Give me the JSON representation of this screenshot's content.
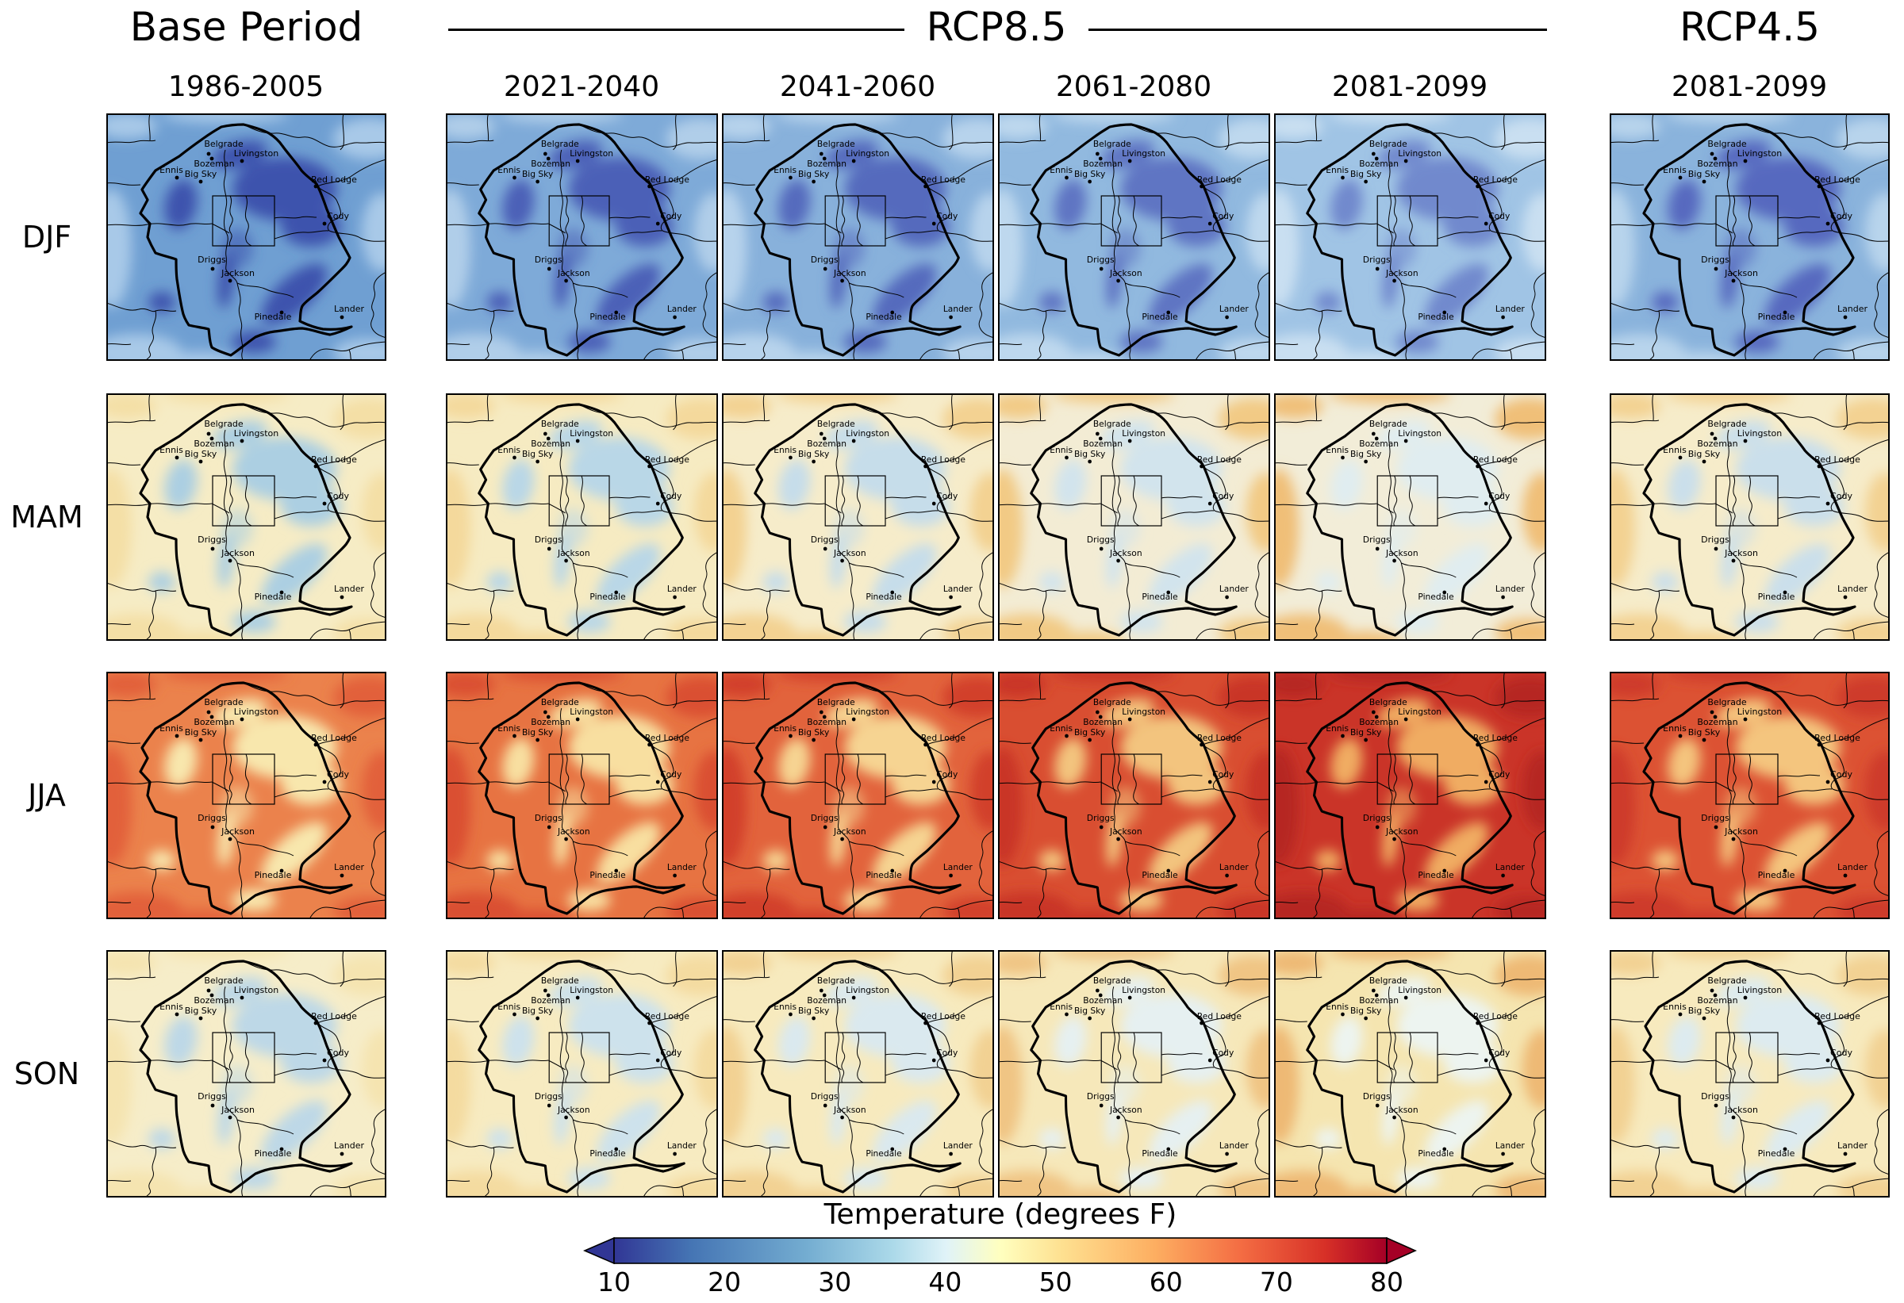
{
  "header": {
    "base_period": {
      "label": "Base Period"
    },
    "rcp85": {
      "label": "RCP8.5"
    },
    "rcp45": {
      "label": "RCP4.5"
    }
  },
  "columns": [
    {
      "group": "base-period",
      "period": "1986-2005"
    },
    {
      "group": "rcp85",
      "period": "2021-2040"
    },
    {
      "group": "rcp85",
      "period": "2041-2060"
    },
    {
      "group": "rcp85",
      "period": "2061-2080"
    },
    {
      "group": "rcp85",
      "period": "2081-2099"
    },
    {
      "group": "rcp45",
      "period": "2081-2099"
    }
  ],
  "rows": [
    {
      "label": "DJF"
    },
    {
      "label": "MAM"
    },
    {
      "label": "JJA"
    },
    {
      "label": "SON"
    }
  ],
  "cities": [
    {
      "name": "Belgrade",
      "dot": [
        129,
        51
      ],
      "label": [
        148,
        42
      ]
    },
    {
      "name": "Bozeman",
      "dot": [
        133,
        57
      ],
      "label": [
        136,
        67
      ]
    },
    {
      "name": "Livingston",
      "dot": [
        171,
        60
      ],
      "label": [
        189,
        54
      ]
    },
    {
      "name": "Ennis",
      "dot": [
        89,
        81
      ],
      "label": [
        82,
        75
      ]
    },
    {
      "name": "Big Sky",
      "dot": [
        119,
        86
      ],
      "label": [
        119,
        80
      ]
    },
    {
      "name": "Red Lodge",
      "dot": [
        264,
        92
      ],
      "label": [
        287,
        87
      ]
    },
    {
      "name": "Cody",
      "dot": [
        275,
        139
      ],
      "label": [
        292,
        133
      ]
    },
    {
      "name": "Driggs",
      "dot": [
        134,
        196
      ],
      "label": [
        133,
        188
      ]
    },
    {
      "name": "Jackson",
      "dot": [
        156,
        211
      ],
      "label": [
        166,
        205
      ]
    },
    {
      "name": "Pinedale",
      "dot": [
        221,
        251
      ],
      "label": [
        210,
        260
      ]
    },
    {
      "name": "Lander",
      "dot": [
        297,
        257
      ],
      "label": [
        306,
        250
      ]
    }
  ],
  "panel_colors": {
    "DJF": {
      "base": [
        "#6f9fd2",
        "#7eaad8",
        "#88b1db",
        "#91b9df",
        "#a0c4e5",
        "#8ab3dc"
      ],
      "mountain": [
        "#3d52ad",
        "#4b61b7",
        "#556abd",
        "#5f75c3",
        "#7189cd",
        "#5769bf"
      ],
      "lowland": [
        "#a8c9e8",
        "#b0cee9",
        "#b7d3ec",
        "#bed8ee",
        "#c9dff1",
        "#b8d4ec"
      ]
    },
    "MAM": {
      "base": [
        "#f6ecc5",
        "#f6ebc2",
        "#f6ecca",
        "#f3ecd4",
        "#f2edd8",
        "#f6ecca"
      ],
      "mountain": [
        "#accfe2",
        "#b9d7e7",
        "#c6ddea",
        "#d2e4ed",
        "#e0edf0",
        "#cadfeb"
      ],
      "lowland": [
        "#f4dfa6",
        "#f4d99c",
        "#f3d292",
        "#f2ca85",
        "#f0bf78",
        "#f3d292"
      ]
    },
    "JJA": {
      "base": [
        "#eb824c",
        "#e77342",
        "#e2633c",
        "#d94e31",
        "#ca3428",
        "#dc5233"
      ],
      "mountain": [
        "#f8e7ad",
        "#f8dfa0",
        "#f6d492",
        "#f3c47e",
        "#f0ac62",
        "#f4c57e"
      ],
      "lowland": [
        "#e2613a",
        "#da5032",
        "#d2402c",
        "#c93428",
        "#b62722",
        "#ce3a29"
      ]
    },
    "SON": {
      "base": [
        "#f6edc9",
        "#f7ebc1",
        "#f7eabe",
        "#f6e8ba",
        "#f5e5b0",
        "#f7eabe"
      ],
      "mountain": [
        "#bdd8e7",
        "#cde2ec",
        "#dae9ef",
        "#e6f0f1",
        "#edf4f0",
        "#ddebf0"
      ],
      "lowland": [
        "#f5e4b0",
        "#f4dba0",
        "#f2d193",
        "#f0c584",
        "#eeb975",
        "#f2d193"
      ]
    }
  },
  "colorbar": {
    "title": "Temperature (degrees F)",
    "ticks": [
      "10",
      "20",
      "30",
      "40",
      "50",
      "60",
      "70",
      "80"
    ],
    "gradient": [
      [
        "#313695",
        0
      ],
      [
        "#4575b4",
        0.1
      ],
      [
        "#74add1",
        0.25
      ],
      [
        "#abd9e9",
        0.36
      ],
      [
        "#e0f3f8",
        0.43
      ],
      [
        "#ffffbf",
        0.5
      ],
      [
        "#fee090",
        0.58
      ],
      [
        "#fdae61",
        0.7
      ],
      [
        "#f46d43",
        0.81
      ],
      [
        "#d73027",
        0.92
      ],
      [
        "#a50026",
        1.0
      ]
    ],
    "arrow_left_color": "#313695",
    "arrow_right_color": "#a50026"
  }
}
